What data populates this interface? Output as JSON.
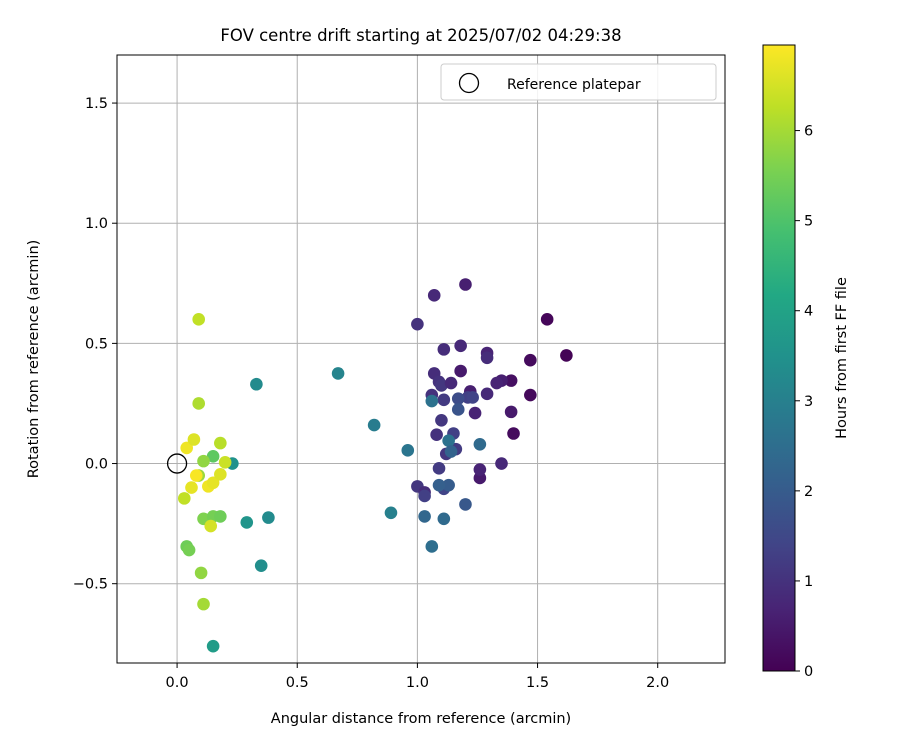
{
  "chart_data": {
    "type": "scatter",
    "title": "FOV centre drift starting at 2025/07/02 04:29:38",
    "xlabel": "Angular distance from reference (arcmin)",
    "ylabel": "Rotation from reference (arcmin)",
    "xlim": [
      -0.25,
      2.28
    ],
    "ylim": [
      -0.83,
      1.7
    ],
    "xticks": [
      0.0,
      0.5,
      1.0,
      1.5,
      2.0
    ],
    "xtick_labels": [
      "0.0",
      "0.5",
      "1.0",
      "1.5",
      "2.0"
    ],
    "yticks": [
      -0.5,
      0.0,
      0.5,
      1.0,
      1.5
    ],
    "ytick_labels": [
      "−0.5",
      "0.0",
      "0.5",
      "1.0",
      "1.5"
    ],
    "grid": true,
    "legend": {
      "position": "top-right",
      "entries": [
        {
          "label": "Reference platepar",
          "marker": "open-circle"
        }
      ]
    },
    "reference_point": {
      "x": 0.0,
      "y": 0.0
    },
    "colorbar": {
      "label": "Hours from first FF file",
      "colormap": "viridis",
      "range": [
        0,
        6.95
      ],
      "ticks": [
        0,
        1,
        2,
        3,
        4,
        5,
        6
      ],
      "tick_labels": [
        "0",
        "1",
        "2",
        "3",
        "4",
        "5",
        "6"
      ]
    },
    "points": [
      {
        "x": 1.54,
        "y": 0.6,
        "c": 0.1
      },
      {
        "x": 1.62,
        "y": 0.45,
        "c": 0.05
      },
      {
        "x": 1.47,
        "y": 0.43,
        "c": 0.2
      },
      {
        "x": 1.47,
        "y": 0.285,
        "c": 0.15
      },
      {
        "x": 1.4,
        "y": 0.125,
        "c": 0.2
      },
      {
        "x": 1.39,
        "y": 0.345,
        "c": 0.3
      },
      {
        "x": 1.39,
        "y": 0.215,
        "c": 0.5
      },
      {
        "x": 1.35,
        "y": 0.345,
        "c": 0.6
      },
      {
        "x": 1.33,
        "y": 0.335,
        "c": 0.7
      },
      {
        "x": 1.35,
        "y": 0.0,
        "c": 0.8
      },
      {
        "x": 1.29,
        "y": 0.46,
        "c": 0.7
      },
      {
        "x": 1.29,
        "y": 0.44,
        "c": 0.9
      },
      {
        "x": 1.29,
        "y": 0.29,
        "c": 0.8
      },
      {
        "x": 1.26,
        "y": -0.06,
        "c": 0.5
      },
      {
        "x": 1.26,
        "y": -0.025,
        "c": 0.7
      },
      {
        "x": 1.2,
        "y": 0.745,
        "c": 0.6
      },
      {
        "x": 1.18,
        "y": 0.49,
        "c": 0.8
      },
      {
        "x": 1.18,
        "y": 0.385,
        "c": 0.5
      },
      {
        "x": 1.22,
        "y": 0.3,
        "c": 0.6
      },
      {
        "x": 1.24,
        "y": 0.21,
        "c": 0.7
      },
      {
        "x": 1.07,
        "y": 0.7,
        "c": 0.8
      },
      {
        "x": 1.0,
        "y": 0.58,
        "c": 1.0
      },
      {
        "x": 1.11,
        "y": 0.475,
        "c": 0.9
      },
      {
        "x": 1.07,
        "y": 0.375,
        "c": 0.9
      },
      {
        "x": 1.09,
        "y": 0.34,
        "c": 1.0
      },
      {
        "x": 1.1,
        "y": 0.325,
        "c": 1.1
      },
      {
        "x": 1.14,
        "y": 0.335,
        "c": 0.8
      },
      {
        "x": 1.06,
        "y": 0.285,
        "c": 1.0
      },
      {
        "x": 1.11,
        "y": 0.265,
        "c": 1.2
      },
      {
        "x": 1.21,
        "y": 0.275,
        "c": 1.3
      },
      {
        "x": 1.23,
        "y": 0.275,
        "c": 1.4
      },
      {
        "x": 1.17,
        "y": 0.27,
        "c": 1.6
      },
      {
        "x": 1.17,
        "y": 0.225,
        "c": 1.8
      },
      {
        "x": 1.1,
        "y": 0.18,
        "c": 1.1
      },
      {
        "x": 1.08,
        "y": 0.12,
        "c": 1.0
      },
      {
        "x": 1.15,
        "y": 0.125,
        "c": 1.3
      },
      {
        "x": 1.16,
        "y": 0.06,
        "c": 1.2
      },
      {
        "x": 1.12,
        "y": 0.04,
        "c": 1.1
      },
      {
        "x": 1.09,
        "y": -0.02,
        "c": 1.2
      },
      {
        "x": 1.0,
        "y": -0.095,
        "c": 1.1
      },
      {
        "x": 1.03,
        "y": -0.12,
        "c": 0.9
      },
      {
        "x": 1.03,
        "y": -0.135,
        "c": 1.3
      },
      {
        "x": 1.11,
        "y": -0.105,
        "c": 1.4
      },
      {
        "x": 1.13,
        "y": -0.09,
        "c": 2.0
      },
      {
        "x": 1.09,
        "y": -0.09,
        "c": 2.1
      },
      {
        "x": 1.2,
        "y": -0.17,
        "c": 1.9
      },
      {
        "x": 1.03,
        "y": -0.22,
        "c": 2.3
      },
      {
        "x": 1.11,
        "y": -0.23,
        "c": 2.4
      },
      {
        "x": 1.06,
        "y": -0.345,
        "c": 2.5
      },
      {
        "x": 1.26,
        "y": 0.08,
        "c": 2.4
      },
      {
        "x": 1.13,
        "y": 0.095,
        "c": 2.6
      },
      {
        "x": 1.14,
        "y": 0.05,
        "c": 2.2
      },
      {
        "x": 1.06,
        "y": 0.26,
        "c": 2.6
      },
      {
        "x": 0.96,
        "y": 0.055,
        "c": 2.7
      },
      {
        "x": 0.89,
        "y": -0.205,
        "c": 3.0
      },
      {
        "x": 0.82,
        "y": 0.16,
        "c": 2.9
      },
      {
        "x": 0.67,
        "y": 0.375,
        "c": 3.1
      },
      {
        "x": 0.33,
        "y": 0.33,
        "c": 3.3
      },
      {
        "x": 0.38,
        "y": -0.225,
        "c": 3.3
      },
      {
        "x": 0.35,
        "y": -0.425,
        "c": 3.4
      },
      {
        "x": 0.29,
        "y": -0.245,
        "c": 3.6
      },
      {
        "x": 0.23,
        "y": 0.0,
        "c": 3.5
      },
      {
        "x": 0.15,
        "y": -0.76,
        "c": 3.8
      },
      {
        "x": 0.15,
        "y": 0.03,
        "c": 5.2
      },
      {
        "x": 0.11,
        "y": -0.23,
        "c": 5.6
      },
      {
        "x": 0.15,
        "y": -0.22,
        "c": 5.5
      },
      {
        "x": 0.18,
        "y": -0.22,
        "c": 5.4
      },
      {
        "x": 0.11,
        "y": 0.01,
        "c": 5.8
      },
      {
        "x": 0.09,
        "y": -0.05,
        "c": 5.9
      },
      {
        "x": 0.04,
        "y": -0.345,
        "c": 5.4
      },
      {
        "x": 0.05,
        "y": -0.36,
        "c": 5.5
      },
      {
        "x": 0.1,
        "y": -0.455,
        "c": 5.8
      },
      {
        "x": 0.11,
        "y": -0.585,
        "c": 6.0
      },
      {
        "x": 0.09,
        "y": 0.25,
        "c": 6.1
      },
      {
        "x": 0.09,
        "y": 0.6,
        "c": 6.3
      },
      {
        "x": 0.03,
        "y": -0.145,
        "c": 6.3
      },
      {
        "x": 0.04,
        "y": 0.065,
        "c": 6.8
      },
      {
        "x": 0.07,
        "y": 0.1,
        "c": 6.6
      },
      {
        "x": 0.06,
        "y": -0.1,
        "c": 6.7
      },
      {
        "x": 0.08,
        "y": -0.05,
        "c": 6.9
      },
      {
        "x": 0.13,
        "y": -0.095,
        "c": 6.8
      },
      {
        "x": 0.15,
        "y": -0.08,
        "c": 6.7
      },
      {
        "x": 0.18,
        "y": -0.045,
        "c": 6.6
      },
      {
        "x": 0.18,
        "y": 0.085,
        "c": 6.2
      },
      {
        "x": 0.2,
        "y": 0.005,
        "c": 6.4
      },
      {
        "x": 0.14,
        "y": -0.26,
        "c": 6.5
      }
    ]
  }
}
